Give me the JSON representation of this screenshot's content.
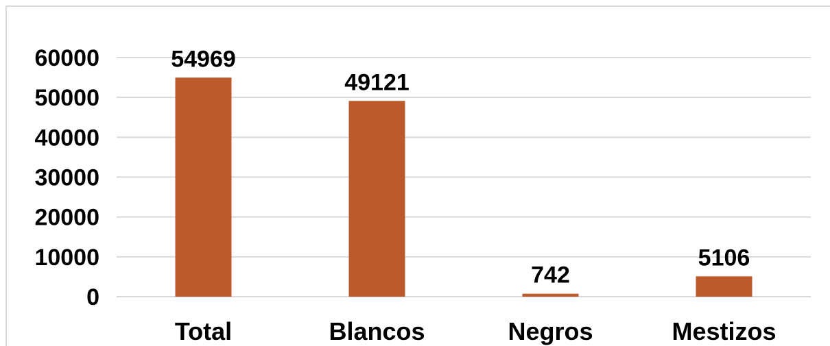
{
  "chart_data": {
    "type": "bar",
    "categories": [
      "Total",
      "Blancos",
      "Negros",
      "Mestizos"
    ],
    "values": [
      54969,
      49121,
      742,
      5106
    ],
    "data_labels": [
      "54969",
      "49121",
      "742",
      "5106"
    ],
    "y_ticks": [
      "0",
      "10000",
      "20000",
      "30000",
      "40000",
      "50000",
      "60000"
    ],
    "ylim": [
      0,
      60000
    ],
    "grid": true,
    "legend": "none",
    "bar_color": "#BC5A2C",
    "grid_color": "#d9d9d9"
  }
}
